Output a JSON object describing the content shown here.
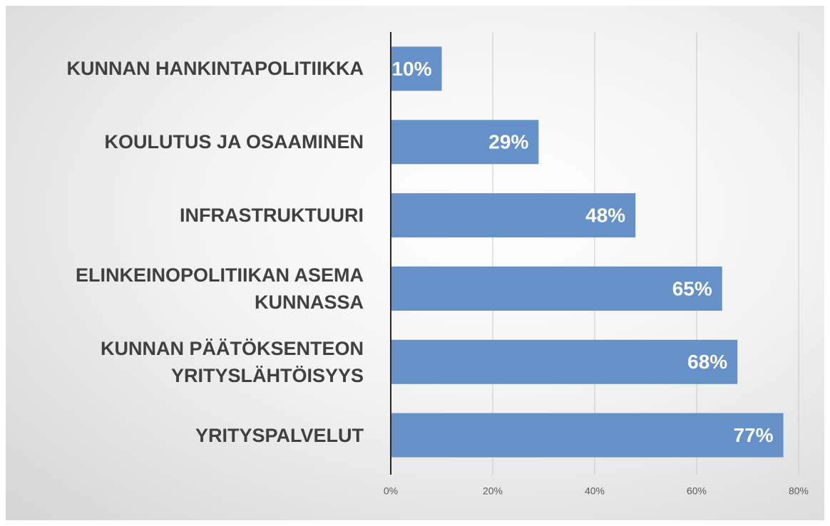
{
  "chart_data": {
    "type": "bar",
    "orientation": "horizontal",
    "categories": [
      "KUNNAN HANKINTAPOLITIIKKA",
      "KOULUTUS JA OSAAMINEN",
      "INFRASTRUKTUURI",
      "ELINKEINOPOLITIIKAN ASEMA\nKUNNASSA",
      "KUNNAN PÄÄTÖKSENTEON\nYRITYSLÄHTÖISYYS",
      "YRITYSPALVELUT"
    ],
    "values": [
      10,
      29,
      48,
      65,
      68,
      77
    ],
    "value_labels": [
      "10%",
      "29%",
      "48%",
      "65%",
      "68%",
      "77%"
    ],
    "color": "#6590c8",
    "xlim": [
      0,
      80
    ],
    "xticks": [
      {
        "value": 0,
        "label": "0%"
      },
      {
        "value": 20,
        "label": "20%"
      },
      {
        "value": 40,
        "label": "40%"
      },
      {
        "value": 60,
        "label": "60%"
      },
      {
        "value": 80,
        "label": "80%"
      }
    ],
    "grid": true
  }
}
